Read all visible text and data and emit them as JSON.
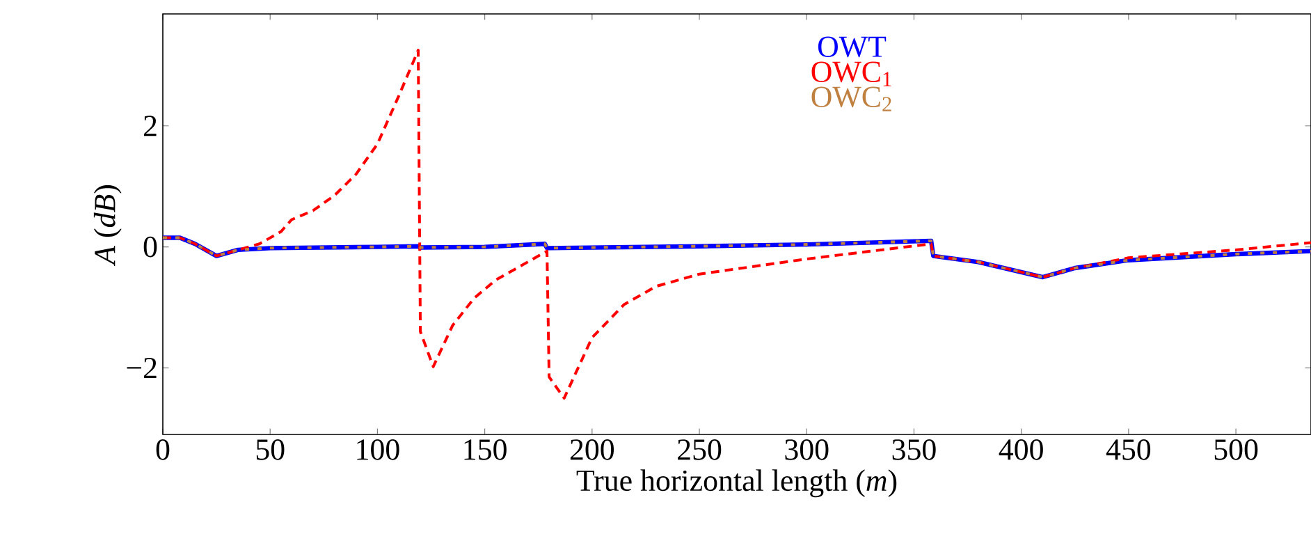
{
  "chart_data": {
    "type": "line",
    "xlabel": "True horizontal length (*m*)",
    "ylabel": "*A* (*dB*)",
    "xlim": [
      0,
      535
    ],
    "ylim": [
      -3.1,
      3.85
    ],
    "xticks": [
      0,
      50,
      100,
      150,
      200,
      250,
      300,
      350,
      400,
      450,
      500
    ],
    "yticks": [
      {
        "value": -2,
        "label": "−2"
      },
      0,
      2
    ],
    "legend": "top",
    "series": [
      {
        "name": "OWT",
        "color": "#0000ff",
        "line_style": "solid",
        "x": [
          0,
          8,
          15,
          25,
          35,
          50,
          100,
          119,
          120,
          150,
          178,
          179,
          250,
          300,
          358,
          359,
          380,
          410,
          425,
          450,
          500,
          535
        ],
        "values": [
          0.15,
          0.15,
          0.05,
          -0.15,
          -0.05,
          -0.02,
          0.0,
          0.01,
          -0.01,
          0.0,
          0.05,
          -0.02,
          0.01,
          0.04,
          0.1,
          -0.15,
          -0.25,
          -0.5,
          -0.35,
          -0.22,
          -0.12,
          -0.07
        ]
      },
      {
        "name": "OWC$_{1}$",
        "color": "#ff0000",
        "line_style": "dashed",
        "x": [
          0,
          8,
          15,
          25,
          35,
          45,
          55,
          60,
          70,
          80,
          90,
          100,
          110,
          119,
          120,
          126,
          135,
          145,
          155,
          165,
          179,
          180,
          187,
          200,
          215,
          230,
          250,
          300,
          358,
          359,
          380,
          410,
          425,
          450,
          500,
          535
        ],
        "values": [
          0.15,
          0.15,
          0.05,
          -0.15,
          -0.05,
          0.05,
          0.25,
          0.45,
          0.6,
          0.85,
          1.2,
          1.7,
          2.5,
          3.25,
          -1.4,
          -1.98,
          -1.3,
          -0.85,
          -0.55,
          -0.35,
          -0.07,
          -2.15,
          -2.5,
          -1.5,
          -0.95,
          -0.65,
          -0.45,
          -0.2,
          0.05,
          -0.15,
          -0.25,
          -0.5,
          -0.35,
          -0.18,
          -0.05,
          0.07
        ]
      },
      {
        "name": "OWC$_{2}$",
        "color": "#bf8040",
        "line_style": "dotted",
        "x": [
          0,
          8,
          15,
          25,
          35,
          50,
          100,
          119,
          120,
          150,
          178,
          179,
          250,
          300,
          358,
          359,
          380,
          410,
          425,
          450,
          500,
          535
        ],
        "values": [
          0.15,
          0.15,
          0.05,
          -0.15,
          -0.05,
          -0.02,
          0.0,
          0.01,
          -0.01,
          0.0,
          0.05,
          -0.02,
          0.01,
          0.04,
          0.1,
          -0.15,
          -0.25,
          -0.5,
          -0.35,
          -0.22,
          -0.12,
          -0.07
        ]
      }
    ]
  }
}
